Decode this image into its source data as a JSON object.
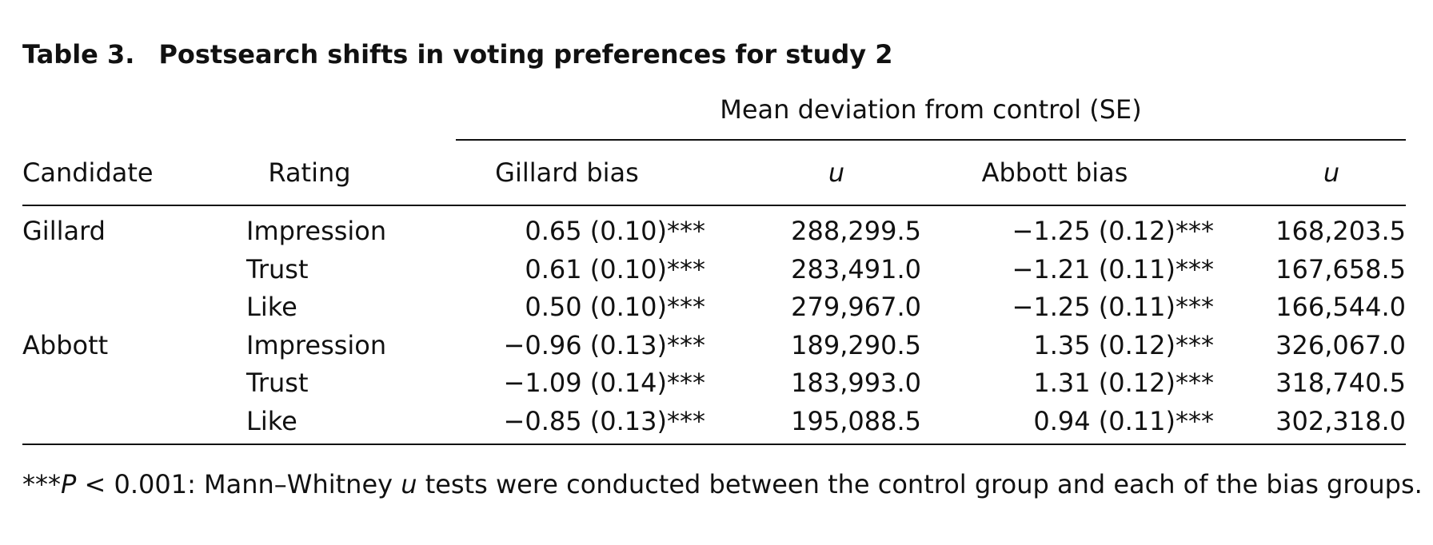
{
  "table": {
    "label": "Table 3.",
    "title": "Postsearch shifts in voting preferences for study 2",
    "spanner": "Mean deviation from control (SE)",
    "columns": {
      "candidate": "Candidate",
      "rating": "Rating",
      "gillard_bias": "Gillard bias",
      "gillard_u": "u",
      "abbott_bias": "Abbott bias",
      "abbott_u": "u"
    },
    "rows": [
      {
        "candidate": "Gillard",
        "rating": "Impression",
        "gillard_bias": "0.65 (0.10)***",
        "gillard_u": "288,299.5",
        "abbott_bias": "−1.25 (0.12)***",
        "abbott_u": "168,203.5"
      },
      {
        "candidate": "",
        "rating": "Trust",
        "gillard_bias": "0.61 (0.10)***",
        "gillard_u": "283,491.0",
        "abbott_bias": "−1.21 (0.11)***",
        "abbott_u": "167,658.5"
      },
      {
        "candidate": "",
        "rating": "Like",
        "gillard_bias": "0.50 (0.10)***",
        "gillard_u": "279,967.0",
        "abbott_bias": "−1.25 (0.11)***",
        "abbott_u": "166,544.0"
      },
      {
        "candidate": "Abbott",
        "rating": "Impression",
        "gillard_bias": "−0.96 (0.13)***",
        "gillard_u": "189,290.5",
        "abbott_bias": "1.35 (0.12)***",
        "abbott_u": "326,067.0"
      },
      {
        "candidate": "",
        "rating": "Trust",
        "gillard_bias": "−1.09 (0.14)***",
        "gillard_u": "183,993.0",
        "abbott_bias": "1.31 (0.12)***",
        "abbott_u": "318,740.5"
      },
      {
        "candidate": "",
        "rating": "Like",
        "gillard_bias": "−0.85 (0.13)***",
        "gillard_u": "195,088.5",
        "abbott_bias": "0.94 (0.11)***",
        "abbott_u": "302,318.0"
      }
    ],
    "footnote": {
      "stars": "***",
      "p_symbol": "P",
      "threshold": " < 0.001: Mann–Whitney ",
      "u_symbol": "u",
      "text": " tests were conducted between the control group and each of the bias groups."
    }
  }
}
